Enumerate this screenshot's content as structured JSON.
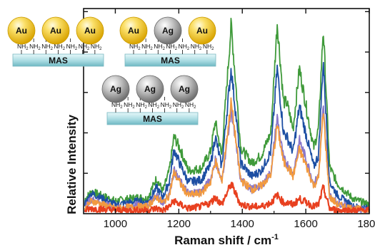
{
  "chart_data": {
    "type": "line",
    "title": "",
    "xlabel": "Raman shift / cm",
    "xlabel_superscript": "-1",
    "ylabel": "Relative Intensity",
    "xlim": [
      900,
      1800
    ],
    "ylim": [
      0,
      1
    ],
    "x_ticks": [
      1000,
      1200,
      1400,
      1600,
      1800
    ],
    "x_tick_labels": [
      "1000",
      "1200",
      "1400",
      "1600",
      "1800"
    ],
    "y_ticks": [
      0.2,
      0.4,
      0.6,
      0.8,
      1.0
    ],
    "y_tick_labels_shown": false,
    "grid": false,
    "legend": "none",
    "colors": {
      "green": "#3f9a3a",
      "blue": "#1d4fa3",
      "purple": "#8a78c9",
      "orange": "#f29a3f",
      "red": "#e8401f"
    },
    "peaks_cm-1": [
      1075,
      1130,
      1185,
      1205,
      1315,
      1365,
      1430,
      1510,
      1540,
      1580,
      1605,
      1655
    ],
    "series": [
      {
        "color": "green",
        "x": [
          905,
          925,
          1000,
          1075,
          1100,
          1130,
          1150,
          1170,
          1185,
          1205,
          1230,
          1270,
          1300,
          1315,
          1335,
          1365,
          1395,
          1430,
          1460,
          1490,
          1510,
          1530,
          1540,
          1560,
          1580,
          1605,
          1625,
          1640,
          1655,
          1675,
          1700,
          1750,
          1800
        ],
        "y": [
          0.07,
          0.11,
          0.06,
          0.08,
          0.07,
          0.18,
          0.11,
          0.22,
          0.4,
          0.33,
          0.22,
          0.23,
          0.32,
          0.48,
          0.3,
          0.99,
          0.34,
          0.26,
          0.3,
          0.42,
          1.0,
          0.58,
          0.58,
          0.44,
          0.76,
          0.52,
          0.34,
          0.44,
          0.97,
          0.24,
          0.15,
          0.07,
          0.04
        ]
      },
      {
        "color": "blue",
        "x": [
          905,
          925,
          1000,
          1075,
          1100,
          1130,
          1150,
          1170,
          1185,
          1205,
          1230,
          1270,
          1300,
          1315,
          1335,
          1365,
          1395,
          1430,
          1460,
          1490,
          1510,
          1530,
          1540,
          1560,
          1580,
          1605,
          1625,
          1640,
          1655,
          1675,
          1700,
          1750,
          1800
        ],
        "y": [
          0.05,
          0.1,
          0.04,
          0.06,
          0.05,
          0.13,
          0.08,
          0.16,
          0.33,
          0.25,
          0.16,
          0.17,
          0.25,
          0.4,
          0.24,
          0.76,
          0.26,
          0.19,
          0.22,
          0.32,
          0.76,
          0.42,
          0.4,
          0.32,
          0.56,
          0.38,
          0.24,
          0.3,
          0.8,
          0.16,
          0.09,
          0.03,
          0.02
        ]
      },
      {
        "color": "purple",
        "x": [
          905,
          925,
          1000,
          1075,
          1100,
          1130,
          1150,
          1170,
          1185,
          1205,
          1230,
          1270,
          1300,
          1315,
          1335,
          1365,
          1395,
          1430,
          1460,
          1490,
          1510,
          1530,
          1540,
          1560,
          1580,
          1605,
          1625,
          1640,
          1655,
          1675,
          1700,
          1750,
          1800
        ],
        "y": [
          0.03,
          0.07,
          0.02,
          0.04,
          0.03,
          0.09,
          0.05,
          0.1,
          0.22,
          0.16,
          0.1,
          0.11,
          0.17,
          0.28,
          0.16,
          0.54,
          0.17,
          0.12,
          0.14,
          0.21,
          0.5,
          0.28,
          0.26,
          0.2,
          0.38,
          0.26,
          0.15,
          0.19,
          0.55,
          0.09,
          0.05,
          0.02,
          0.01
        ]
      },
      {
        "color": "orange",
        "x": [
          905,
          925,
          1000,
          1075,
          1100,
          1130,
          1150,
          1170,
          1185,
          1205,
          1230,
          1270,
          1300,
          1315,
          1335,
          1365,
          1395,
          1430,
          1460,
          1490,
          1510,
          1530,
          1540,
          1560,
          1580,
          1605,
          1625,
          1640,
          1655,
          1675,
          1700,
          1750,
          1800
        ],
        "y": [
          0.02,
          0.06,
          0.02,
          0.03,
          0.03,
          0.08,
          0.05,
          0.09,
          0.21,
          0.15,
          0.09,
          0.1,
          0.16,
          0.27,
          0.16,
          0.58,
          0.17,
          0.12,
          0.14,
          0.2,
          0.46,
          0.26,
          0.25,
          0.19,
          0.33,
          0.23,
          0.14,
          0.18,
          0.53,
          0.08,
          0.04,
          0.02,
          0.01
        ]
      },
      {
        "color": "red",
        "x": [
          905,
          925,
          1000,
          1075,
          1100,
          1130,
          1150,
          1170,
          1185,
          1205,
          1230,
          1270,
          1300,
          1315,
          1335,
          1365,
          1395,
          1430,
          1460,
          1490,
          1510,
          1530,
          1540,
          1560,
          1580,
          1605,
          1625,
          1640,
          1655,
          1675,
          1700,
          1750,
          1800
        ],
        "y": [
          0.01,
          0.02,
          0.01,
          0.01,
          0.01,
          0.02,
          0.01,
          0.03,
          0.06,
          0.04,
          0.02,
          0.03,
          0.05,
          0.08,
          0.04,
          0.15,
          0.04,
          0.03,
          0.03,
          0.05,
          0.09,
          0.05,
          0.05,
          0.04,
          0.07,
          0.05,
          0.03,
          0.04,
          0.13,
          0.02,
          0.01,
          0.01,
          0.01
        ]
      }
    ]
  },
  "insets": [
    {
      "particles": [
        "Au",
        "Au",
        "Au"
      ],
      "amine_label": "NH",
      "amine_subscript": "2",
      "amines": 7,
      "substrate_label": "MAS"
    },
    {
      "particles": [
        "Au",
        "Ag",
        "Au"
      ],
      "amine_label": "NH",
      "amine_subscript": "2",
      "amines": 7,
      "substrate_label": "MAS"
    },
    {
      "particles": [
        "Ag",
        "Ag",
        "Ag"
      ],
      "amine_label": "NH",
      "amine_subscript": "2",
      "amines": 7,
      "substrate_label": "MAS"
    }
  ],
  "inset_colors": {
    "Au": "#f4c320",
    "Ag": "#9a9a9a",
    "substrate": "#a9dbe2"
  }
}
